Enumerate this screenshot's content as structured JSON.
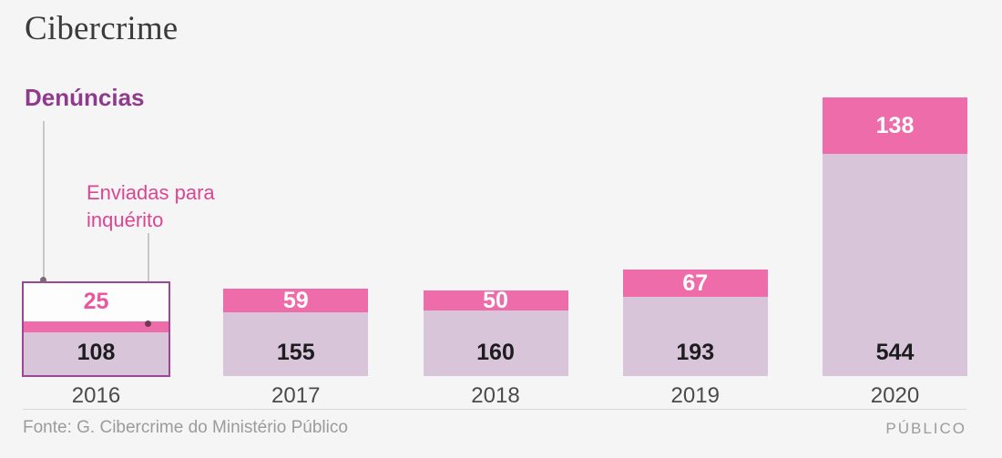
{
  "title": "Cibercrime",
  "footer": {
    "source": "Fonte: G. Cibercrime do Ministério Público",
    "brand": "PÚBLICO"
  },
  "colors": {
    "background": "#f6f5f6",
    "bar_base": "#d9c5d9",
    "bar_sent": "#ef6caa",
    "legend_denuncias": "#8e3a8d",
    "legend_enviadas": "#dc4591",
    "highlight_outline": "#9b4795",
    "value_dark": "#1d1d20",
    "footer_text": "#9b9b9b"
  },
  "chart_data": {
    "type": "bar",
    "stacked": true,
    "title": "Cibercrime",
    "categories": [
      "2016",
      "2017",
      "2018",
      "2019",
      "2020"
    ],
    "series": [
      {
        "name": "Denúncias",
        "color": "#d9c5d9",
        "values": [
          108,
          155,
          160,
          193,
          544
        ]
      },
      {
        "name": "Enviadas para inquérito",
        "color": "#ef6caa",
        "values": [
          25,
          59,
          50,
          67,
          138
        ]
      }
    ],
    "legend_position": "top-left",
    "grid": false,
    "value_labels": true,
    "highlighted_category": "2016"
  }
}
